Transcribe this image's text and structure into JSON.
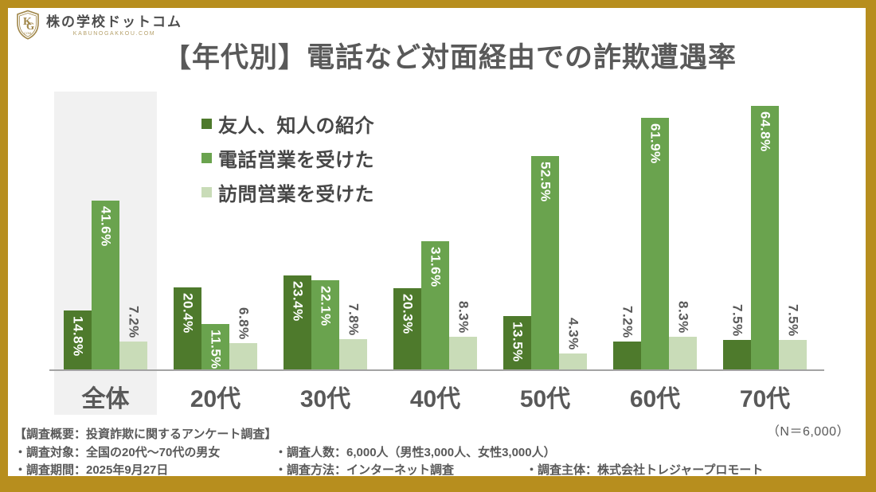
{
  "brand": {
    "logo_text": "株の学校ドットコム",
    "logo_subtext": "KABUNOGAKKOU.COM",
    "logo_monogram_top": "K",
    "logo_monogram_bottom": "G",
    "logo_monogram_tiny": "COM"
  },
  "title": "【年代別】電話など対面経由での詐欺遭遇率",
  "sample_note": "（N＝6,000）",
  "colors": {
    "border_gold": "#b78e1e",
    "series1": "#4e7a2c",
    "series2": "#6aa34e",
    "series3": "#c9dcb8",
    "highlight_bg": "#f1f1f1",
    "axis": "#a3a3a3",
    "label_dark": "#595959",
    "label_white": "#ffffff"
  },
  "chart_data": {
    "type": "bar",
    "title": "【年代別】電話など対面経由での詐欺遭遇率",
    "categories": [
      "全体",
      "20代",
      "30代",
      "40代",
      "50代",
      "60代",
      "70代"
    ],
    "series": [
      {
        "name": "友人、知人の紹介",
        "color_key": "series1",
        "values": [
          14.8,
          20.4,
          23.4,
          20.3,
          13.5,
          7.2,
          7.5
        ]
      },
      {
        "name": "電話営業を受けた",
        "color_key": "series2",
        "values": [
          41.6,
          11.5,
          22.1,
          31.6,
          52.5,
          61.9,
          64.8
        ]
      },
      {
        "name": "訪問営業を受けた",
        "color_key": "series3",
        "values": [
          7.2,
          6.8,
          7.8,
          8.3,
          4.3,
          8.3,
          7.5
        ]
      }
    ],
    "value_suffix": "%",
    "ylim": [
      0,
      70
    ],
    "grid": false,
    "legend_position": "top-left-inside",
    "highlighted_category": "全体",
    "inside_label_threshold": 10
  },
  "footer": {
    "heading": "【調査概要：投資詐欺に関するアンケート調査】",
    "row1": [
      "・調査対象：全国の20代～70代の男女",
      "・調査人数：6,000人（男性3,000人、女性3,000人）"
    ],
    "row2": [
      "・調査期間：2025年9月27日",
      "・調査方法：インターネット調査",
      "・調査主体：株式会社トレジャープロモート"
    ]
  }
}
